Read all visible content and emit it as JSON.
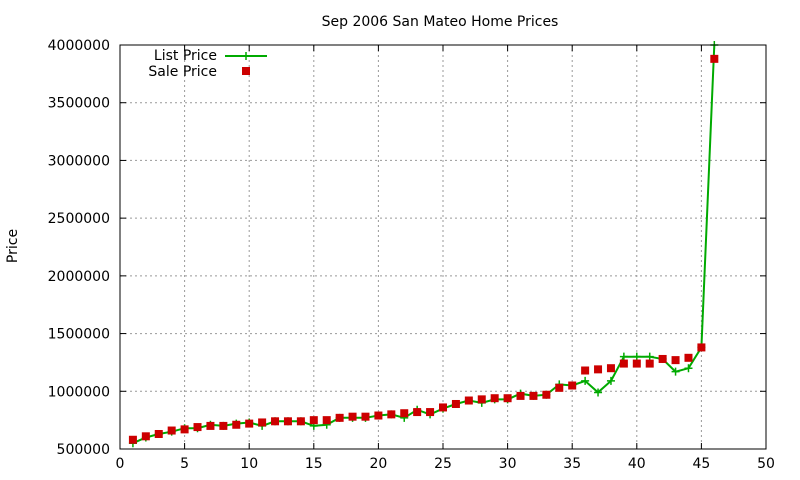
{
  "chart_data": {
    "type": "line",
    "title": "Sep 2006 San Mateo Home Prices",
    "xlabel": "",
    "ylabel": "Price",
    "xlim": [
      0,
      50
    ],
    "ylim": [
      500000,
      4000000
    ],
    "x_ticks": [
      "0",
      "5",
      "10",
      "15",
      "20",
      "25",
      "30",
      "35",
      "40",
      "45",
      "50"
    ],
    "y_ticks": [
      "500000",
      "1000000",
      "1500000",
      "2000000",
      "2500000",
      "3000000",
      "3500000",
      "4000000"
    ],
    "grid": true,
    "legend_position": "top-left",
    "series": [
      {
        "name": "List Price",
        "style": "line-plus",
        "color": "#00aa00",
        "x": [
          1,
          2,
          3,
          4,
          5,
          6,
          7,
          8,
          9,
          10,
          11,
          12,
          13,
          14,
          15,
          16,
          17,
          18,
          19,
          20,
          21,
          22,
          23,
          24,
          25,
          26,
          27,
          28,
          29,
          30,
          31,
          32,
          33,
          34,
          35,
          36,
          37,
          38,
          39,
          40,
          41,
          42,
          43,
          44,
          45,
          46
        ],
        "values": [
          550000,
          600000,
          630000,
          650000,
          680000,
          680000,
          710000,
          700000,
          720000,
          730000,
          700000,
          740000,
          740000,
          740000,
          700000,
          710000,
          770000,
          770000,
          770000,
          790000,
          800000,
          770000,
          840000,
          800000,
          850000,
          890000,
          920000,
          900000,
          930000,
          930000,
          980000,
          960000,
          970000,
          1060000,
          1050000,
          1090000,
          990000,
          1090000,
          1300000,
          1300000,
          1300000,
          1280000,
          1170000,
          1200000,
          1380000,
          4000000
        ]
      },
      {
        "name": "Sale Price",
        "style": "square",
        "color": "#cc0000",
        "x": [
          1,
          2,
          3,
          4,
          5,
          6,
          7,
          8,
          9,
          10,
          11,
          12,
          13,
          14,
          15,
          16,
          17,
          18,
          19,
          20,
          21,
          22,
          23,
          24,
          25,
          26,
          27,
          28,
          29,
          30,
          31,
          32,
          33,
          34,
          35,
          36,
          37,
          38,
          39,
          40,
          41,
          42,
          43,
          44,
          45,
          46
        ],
        "values": [
          580000,
          610000,
          630000,
          660000,
          670000,
          690000,
          700000,
          700000,
          710000,
          720000,
          730000,
          740000,
          740000,
          740000,
          750000,
          750000,
          770000,
          780000,
          780000,
          790000,
          800000,
          810000,
          820000,
          820000,
          860000,
          890000,
          920000,
          930000,
          940000,
          940000,
          960000,
          960000,
          970000,
          1030000,
          1050000,
          1180000,
          1190000,
          1200000,
          1240000,
          1240000,
          1240000,
          1280000,
          1270000,
          1290000,
          1380000,
          3880000
        ]
      }
    ]
  }
}
